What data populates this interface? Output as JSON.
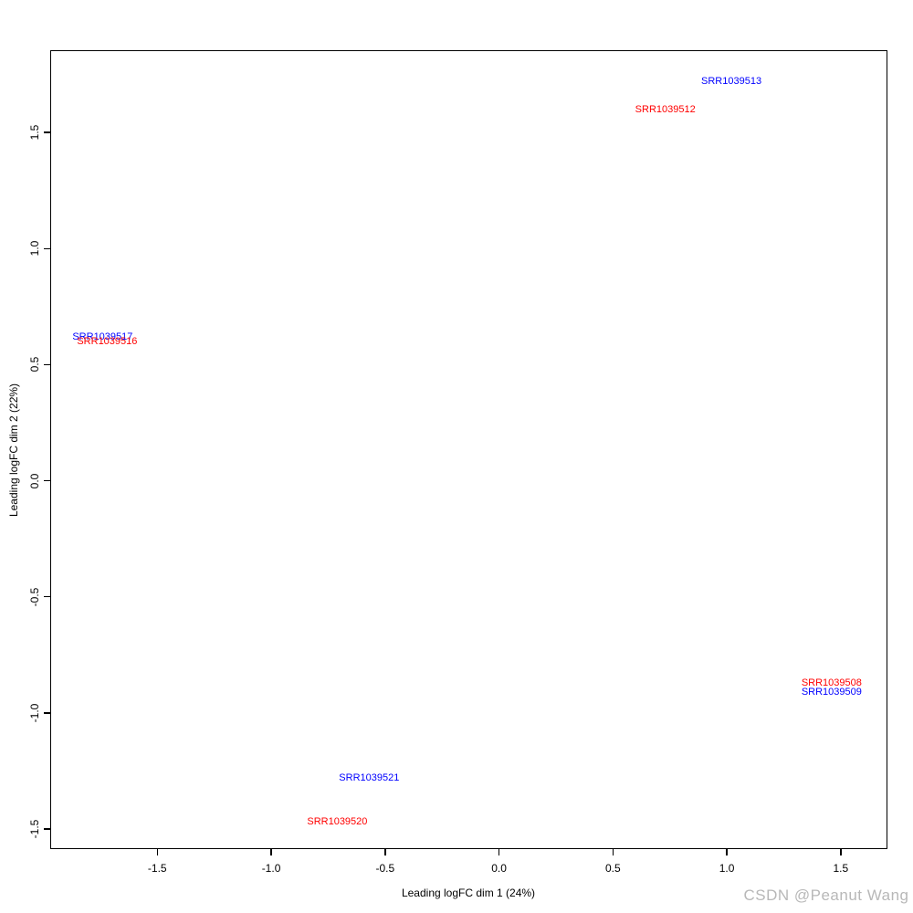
{
  "figure": {
    "watermark": "CSDN @Peanut Wang",
    "watermark_color": "#b8b8b8",
    "background_color": "#ffffff",
    "axis_color": "#000000"
  },
  "chart_data": {
    "type": "scatter",
    "title": "",
    "xlabel": "Leading logFC dim 1 (24%)",
    "ylabel": "Leading logFC dim 2 (22%)",
    "xlim": [
      -1.97,
      1.705
    ],
    "ylim": [
      -1.587,
      1.855
    ],
    "x_ticks": [
      -1.5,
      -1.0,
      -0.5,
      0.0,
      0.5,
      1.0,
      1.5
    ],
    "y_ticks": [
      -1.5,
      -1.0,
      -0.5,
      0.0,
      0.5,
      1.0,
      1.5
    ],
    "grid": false,
    "legend": false,
    "point_style": "text-labels",
    "colors": {
      "blue": "#0000ff",
      "red": "#ff0000"
    },
    "points": [
      {
        "label": "SRR1039513",
        "x": 1.02,
        "y": 1.72,
        "color": "blue"
      },
      {
        "label": "SRR1039512",
        "x": 0.73,
        "y": 1.6,
        "color": "red"
      },
      {
        "label": "SRR1039517",
        "x": -1.74,
        "y": 0.62,
        "color": "blue"
      },
      {
        "label": "SRR1039516",
        "x": -1.72,
        "y": 0.6,
        "color": "red"
      },
      {
        "label": "SRR1039508",
        "x": 1.46,
        "y": -0.87,
        "color": "red"
      },
      {
        "label": "SRR1039509",
        "x": 1.46,
        "y": -0.91,
        "color": "blue"
      },
      {
        "label": "SRR1039521",
        "x": -0.57,
        "y": -1.28,
        "color": "blue"
      },
      {
        "label": "SRR1039520",
        "x": -0.71,
        "y": -1.47,
        "color": "red"
      }
    ]
  }
}
